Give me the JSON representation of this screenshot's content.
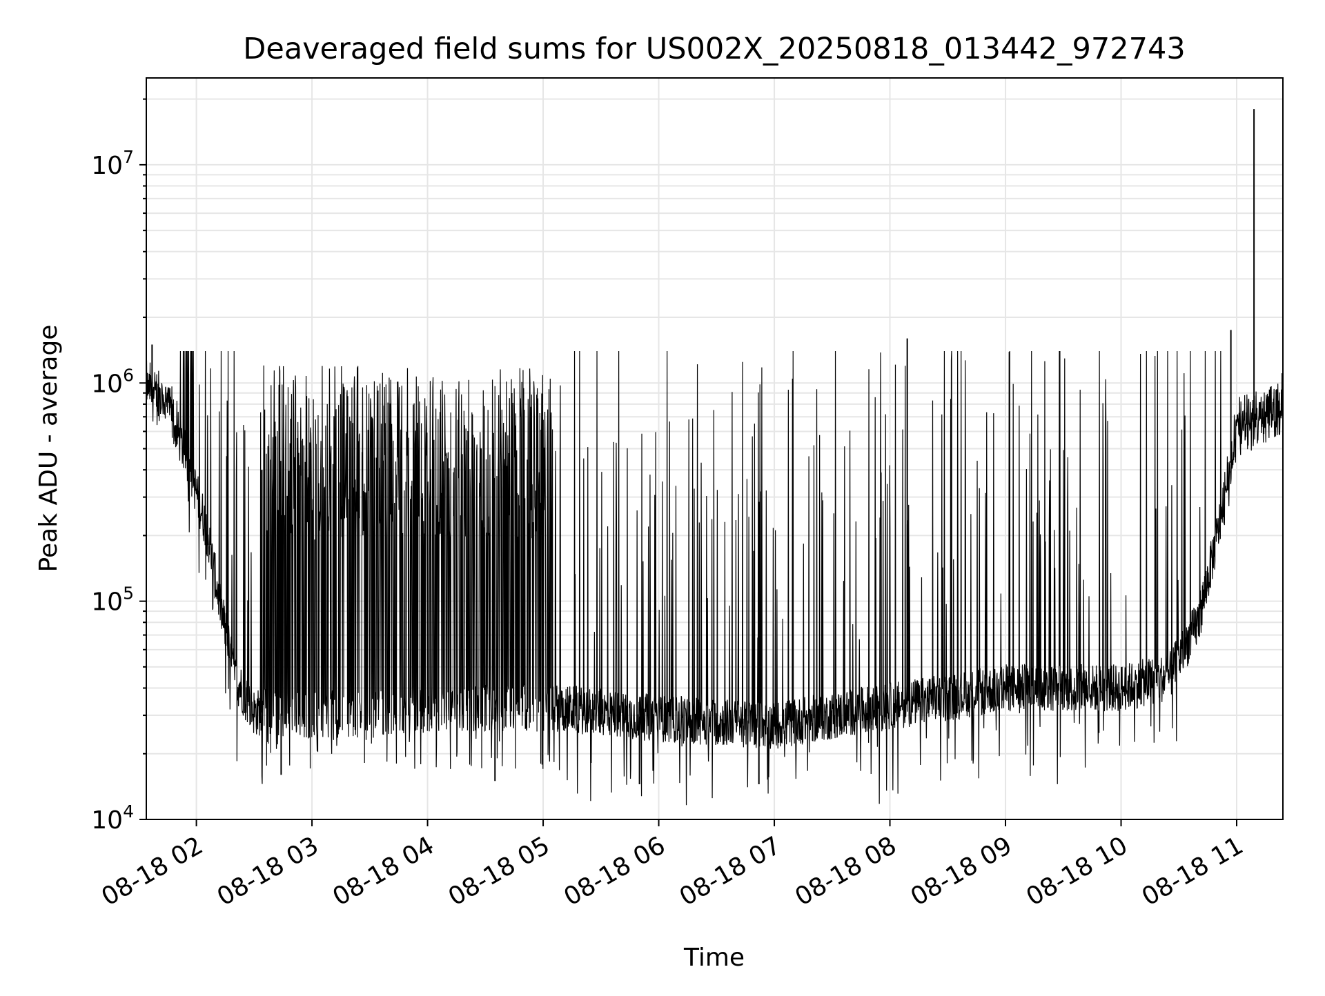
{
  "chart_data": {
    "type": "line",
    "title": "Deaveraged field sums for US002X_20250818_013442_972743",
    "xlabel": "Time",
    "ylabel": "Peak ADU - average",
    "yscale": "log",
    "ylim": [
      10000,
      25000000
    ],
    "xlim": [
      "2025-08-18 01:34",
      "2025-08-18 11:24"
    ],
    "grid": true,
    "grid_color": "#e6e6e6",
    "line_color": "#000000",
    "x_ticks": [
      "08-18 02",
      "08-18 03",
      "08-18 04",
      "08-18 05",
      "08-18 06",
      "08-18 07",
      "08-18 08",
      "08-18 09",
      "08-18 10",
      "08-18 11"
    ],
    "y_ticks": [
      {
        "value": 10000,
        "base": "10",
        "exp": "4"
      },
      {
        "value": 100000,
        "base": "10",
        "exp": "5"
      },
      {
        "value": 1000000,
        "base": "10",
        "exp": "6"
      },
      {
        "value": 10000000,
        "base": "10",
        "exp": "7"
      }
    ],
    "series": [
      {
        "baseline": {
          "t": [
            "2025-08-18 01:34",
            "2025-08-18 01:45",
            "2025-08-18 01:55",
            "2025-08-18 02:05",
            "2025-08-18 02:12",
            "2025-08-18 02:20",
            "2025-08-18 02:30",
            "2025-08-18 03:00",
            "2025-08-18 04:00",
            "2025-08-18 05:00",
            "2025-08-18 06:00",
            "2025-08-18 07:00",
            "2025-08-18 08:00",
            "2025-08-18 09:00",
            "2025-08-18 10:00",
            "2025-08-18 10:25",
            "2025-08-18 10:40",
            "2025-08-18 10:50",
            "2025-08-18 11:00",
            "2025-08-18 11:24"
          ],
          "y": [
            950000,
            800000,
            450000,
            220000,
            100000,
            45000,
            31000,
            30000,
            32000,
            33000,
            29000,
            27000,
            33000,
            40000,
            40000,
            45000,
            80000,
            200000,
            600000,
            800000
          ]
        },
        "high_band": {
          "start": "2025-08-18 02:35",
          "end": "2025-08-18 05:05",
          "value": 1200000
        },
        "notable_peaks": [
          {
            "t": "2025-08-18 01:37",
            "y": 1500000
          },
          {
            "t": "2025-08-18 02:34",
            "y": 400000
          },
          {
            "t": "2025-08-18 08:09",
            "y": 1600000
          },
          {
            "t": "2025-08-18 10:57",
            "y": 1750000
          },
          {
            "t": "2025-08-18 11:09",
            "y": 18000000
          }
        ],
        "notable_minima": [
          {
            "t": "2025-08-18 02:44",
            "y": 16000
          },
          {
            "t": "2025-08-18 04:35",
            "y": 15000
          },
          {
            "t": "2025-08-18 05:50",
            "y": 14500
          },
          {
            "t": "2025-08-18 06:52",
            "y": 14500
          }
        ]
      }
    ]
  }
}
